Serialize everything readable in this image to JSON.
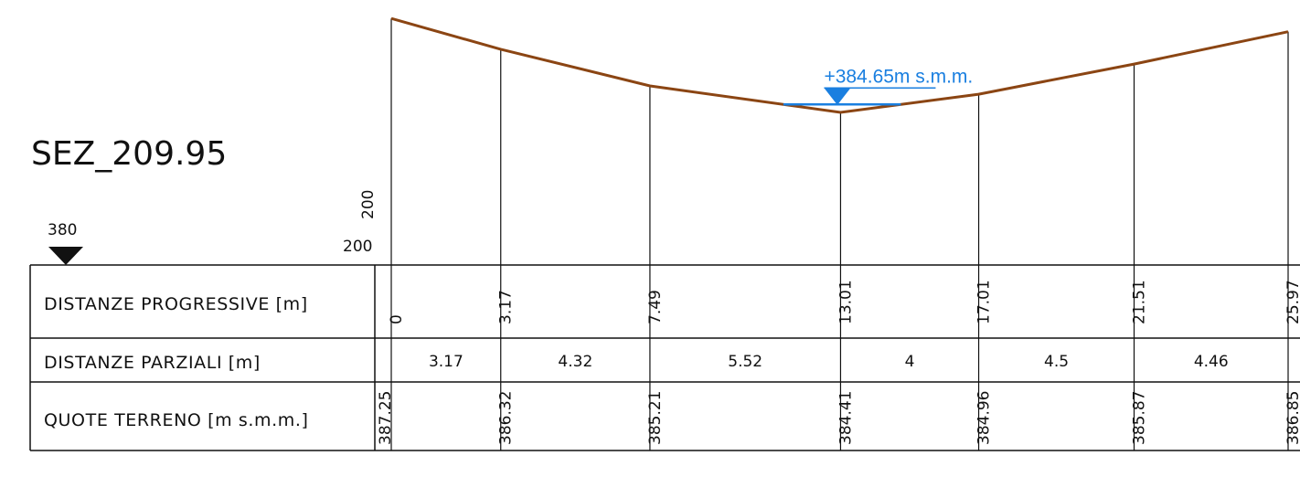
{
  "section_title": "SEZ_209.95",
  "datum": {
    "label": "380"
  },
  "scale": {
    "vertical": "200",
    "horizontal": "200"
  },
  "water_level": {
    "label": "+384.65m s.m.m.",
    "elevation": 384.65
  },
  "rows": {
    "progressive_label": "DISTANZE PROGRESSIVE [m]",
    "partial_label": "DISTANZE PARZIALI [m]",
    "terrain_label": "QUOTE TERRENO [m s.m.m.]"
  },
  "stations": [
    {
      "progressive": "0",
      "terrain": "387.25"
    },
    {
      "progressive": "3.17",
      "terrain": "386.32"
    },
    {
      "progressive": "7.49",
      "terrain": "385.21"
    },
    {
      "progressive": "13.01",
      "terrain": "384.41"
    },
    {
      "progressive": "17.01",
      "terrain": "384.96"
    },
    {
      "progressive": "21.51",
      "terrain": "385.87"
    },
    {
      "progressive": "25.97",
      "terrain": "386.85"
    }
  ],
  "partials": [
    "3.17",
    "4.32",
    "5.52",
    "4",
    "4.5",
    "4.46"
  ],
  "colors": {
    "ground": "#8B4513",
    "water": "#1a7fe0",
    "lines": "#111111"
  },
  "icons": {
    "datum": "triangle-down-icon",
    "water": "water-level-triangle-icon"
  }
}
